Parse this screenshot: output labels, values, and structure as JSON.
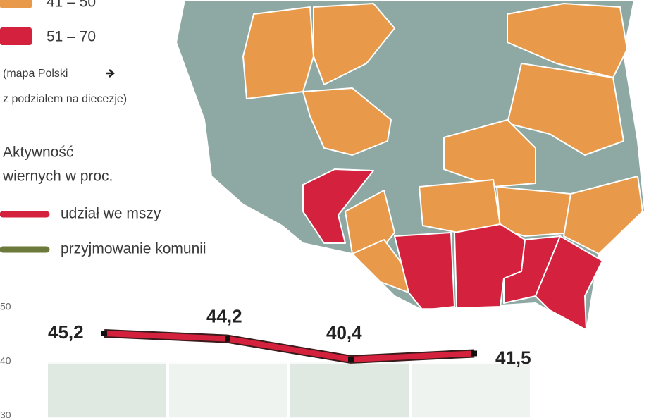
{
  "map_legend": {
    "items": [
      {
        "label": "41 – 50",
        "color": "#e89a4a"
      },
      {
        "label": "51 – 70",
        "color": "#d4213d"
      }
    ],
    "note_line1": "(mapa Polski",
    "note_line2": "z podziałem na diecezje)"
  },
  "chart_data": {
    "type": "line",
    "title_line1": "Aktywność",
    "title_line2": "wiernych w proc.",
    "categories": [
      null,
      null,
      null,
      null
    ],
    "series": [
      {
        "name": "udział we mszy",
        "color": "#d4213d",
        "values": [
          45.2,
          44.2,
          40.4,
          41.5
        ],
        "value_labels": [
          "45,2",
          "44,2",
          "40,4",
          "41,5"
        ]
      }
    ],
    "extra_legend": [
      {
        "name": "przyjmowanie komunii",
        "color": "#6b7a3a"
      }
    ],
    "ylim": [
      30,
      50
    ],
    "yticks": [
      50,
      40,
      30
    ]
  }
}
